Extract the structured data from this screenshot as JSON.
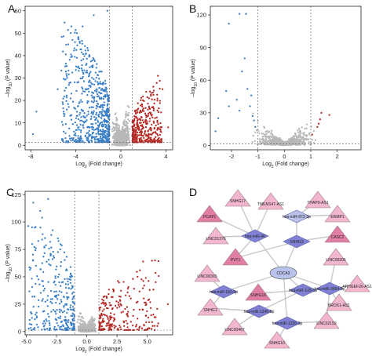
{
  "panels": [
    {
      "letter": "A",
      "xticks": [
        -8,
        -4,
        0,
        4
      ],
      "yticks": [
        0,
        10,
        20,
        30,
        40,
        50,
        60
      ],
      "xlim": [
        -8.5,
        4.6
      ],
      "ylim": [
        -2,
        62
      ]
    },
    {
      "letter": "B",
      "xticks": [
        -2,
        -1,
        0,
        1,
        2
      ],
      "yticks": [
        0,
        30,
        60,
        90,
        120
      ],
      "xlim": [
        -2.8,
        2.9
      ],
      "ylim": [
        -4,
        128
      ]
    },
    {
      "letter": "C",
      "xticks": [
        -5.0,
        -2.5,
        0.0,
        2.5,
        5.0
      ],
      "xtick_labels": [
        "-5.0",
        "-2.5",
        "0.0",
        "2.5",
        "5.0"
      ],
      "yticks": [
        0,
        25,
        50,
        75,
        100,
        125
      ],
      "xlim": [
        -5.1,
        7.1
      ],
      "ylim": [
        -3,
        128
      ]
    }
  ],
  "xlabel_pre": "Log",
  "xlabel_sub": "2",
  "xlabel_post": " (Fold change)",
  "ylabel_pre": "–log",
  "ylabel_sub": "10",
  "ylabel_post": " (P value)",
  "panel_d_letter": "D",
  "colors": {
    "down": "#3a7fc6",
    "up": "#b52a25",
    "ns": "#b8b8b8",
    "hub": "#b8c2ea",
    "mirna": "#7f82d4",
    "lnc": "#f2b6cf",
    "mrna": "#e07ea4",
    "edge": "#c8c8c8"
  },
  "network": {
    "nodes": [
      {
        "id": "SNHG17",
        "label": "SNHG17",
        "shape": "triangle",
        "color": "lnc"
      },
      {
        "id": "TMEM147AS1",
        "label": "TMEM147-AS1",
        "shape": "triangle",
        "color": "lnc"
      },
      {
        "id": "THAP9AS1",
        "label": "THAP9-AS1",
        "shape": "triangle",
        "color": "lnc"
      },
      {
        "id": "PCAT6",
        "label": "PCAT6",
        "shape": "triangle",
        "color": "mrna"
      },
      {
        "id": "MIR872",
        "label": "hsa-miR-872-3p",
        "shape": "diamond",
        "color": "hub"
      },
      {
        "id": "ERMP1",
        "label": "ERMP1",
        "shape": "triangle",
        "color": "lnc"
      },
      {
        "id": "LINC01376",
        "label": "LINC01376",
        "shape": "triangle",
        "color": "lnc"
      },
      {
        "id": "MIR96",
        "label": "hsa-miR-96",
        "shape": "diamond",
        "color": "mirna"
      },
      {
        "id": "SNHG3",
        "label": "SNHG3",
        "shape": "diamond",
        "color": "mirna"
      },
      {
        "id": "CASC2",
        "label": "CASC2",
        "shape": "triangle",
        "color": "mrna"
      },
      {
        "id": "PVT1",
        "label": "PVT1",
        "shape": "triangle",
        "color": "mrna"
      },
      {
        "id": "LINC00205",
        "label": "LINC00205",
        "shape": "triangle",
        "color": "lnc"
      },
      {
        "id": "CDCA3",
        "label": "CDCA3",
        "shape": "ellipse",
        "color": "hub"
      },
      {
        "id": "LINC00365",
        "label": "LINC00365",
        "shape": "triangle",
        "color": "lnc"
      },
      {
        "id": "ARHGEF26AS1",
        "label": "ARHGEF26-AS1",
        "shape": "triangle",
        "color": "lnc"
      },
      {
        "id": "MIR3064",
        "label": "hsa-miR-3064-5p",
        "shape": "diamond",
        "color": "mirna"
      },
      {
        "id": "MIR182",
        "label": "hsa-miR-182-5p",
        "shape": "diamond",
        "color": "mirna"
      },
      {
        "id": "MIR125",
        "label": "hsa-miR-125-5p",
        "shape": "diamond",
        "color": "mirna"
      },
      {
        "id": "SNHG16",
        "label": "SNHG16",
        "shape": "triangle",
        "color": "mrna"
      },
      {
        "id": "SNHG1",
        "label": "SNHG1",
        "shape": "triangle",
        "color": "lnc"
      },
      {
        "id": "BROX1AS1",
        "label": "BROX1-AS1",
        "shape": "triangle",
        "color": "lnc"
      },
      {
        "id": "MIR1248",
        "label": "hsa-miR-1248-5p",
        "shape": "diamond",
        "color": "mirna"
      },
      {
        "id": "MIR1226",
        "label": "hsa-miR-1226-3p",
        "shape": "diamond",
        "color": "mirna"
      },
      {
        "id": "LINC02159",
        "label": "LINC02159",
        "shape": "triangle",
        "color": "lnc"
      },
      {
        "id": "LINC00467",
        "label": "LINC00467",
        "shape": "triangle",
        "color": "lnc"
      },
      {
        "id": "SNHG10",
        "label": "SNHG10",
        "shape": "triangle",
        "color": "lnc"
      }
    ],
    "edges": [
      [
        "SNHG17",
        "MIR96"
      ],
      [
        "TMEM147AS1",
        "MIR96"
      ],
      [
        "THAP9AS1",
        "MIR872"
      ],
      [
        "PCAT6",
        "MIR96"
      ],
      [
        "ERMP1",
        "MIR872"
      ],
      [
        "LINC01376",
        "MIR96"
      ],
      [
        "MIR96",
        "CDCA3"
      ],
      [
        "MIR872",
        "SNHG3"
      ],
      [
        "SNHG3",
        "CDCA3"
      ],
      [
        "CASC2",
        "SNHG3"
      ],
      [
        "PVT1",
        "MIR96"
      ],
      [
        "LINC00205",
        "MIR3064"
      ],
      [
        "CDCA3",
        "MIR3064"
      ],
      [
        "CDCA3",
        "MIR182"
      ],
      [
        "CDCA3",
        "MIR125"
      ],
      [
        "CDCA3",
        "MIR1226"
      ],
      [
        "LINC00365",
        "MIR182"
      ],
      [
        "ARHGEF26AS1",
        "MIR3064"
      ],
      [
        "SNHG16",
        "MIR125"
      ],
      [
        "SNHG1",
        "MIR182"
      ],
      [
        "BROX1AS1",
        "MIR3064"
      ],
      [
        "SNHG1",
        "MIR1248"
      ],
      [
        "MIR1248",
        "MIR125"
      ],
      [
        "LINC02159",
        "MIR1226"
      ],
      [
        "LINC00467",
        "MIR1248"
      ],
      [
        "SNHG10",
        "MIR1226"
      ],
      [
        "LINC02159",
        "MIR3064"
      ],
      [
        "PVT1",
        "SNHG3"
      ]
    ]
  },
  "chart_data": [
    {
      "type": "scatter",
      "title": "",
      "xlabel": "Log2 (Fold change)",
      "ylabel": "–log10 (P value)",
      "xlim": [
        -8.5,
        4.6
      ],
      "ylim": [
        -2,
        62
      ],
      "thresholds": {
        "fold_change_lines": [
          -1,
          1
        ],
        "p_value_line": 1.3
      },
      "groups": {
        "down": {
          "count": 640,
          "x_range": [
            -5.2,
            -1.0
          ],
          "y_max": 58
        },
        "up": {
          "count": 360,
          "x_range": [
            1.0,
            3.6
          ],
          "y_max": 30
        },
        "ns": {
          "count": 900,
          "x_range": [
            -1.0,
            1.0
          ],
          "y_max": 35
        }
      },
      "outliers": [
        [
          -7.8,
          5
        ],
        [
          -7.5,
          15
        ],
        [
          -5.6,
          25
        ],
        [
          -4.3,
          47
        ],
        [
          -3.9,
          50
        ],
        [
          -3.4,
          53
        ],
        [
          -2.4,
          58
        ],
        [
          -1.2,
          60
        ],
        [
          3.3,
          31
        ],
        [
          3.7,
          25
        ],
        [
          4.2,
          8
        ],
        [
          2.8,
          17
        ]
      ]
    },
    {
      "type": "scatter",
      "title": "",
      "xlabel": "Log2 (Fold change)",
      "ylabel": "–log10 (P value)",
      "xlim": [
        -2.8,
        2.9
      ],
      "ylim": [
        -4,
        128
      ],
      "thresholds": {
        "fold_change_lines": [
          -1,
          1
        ],
        "p_value_line": 1.3
      },
      "points": {
        "down": [
          [
            -2.5,
            25
          ],
          [
            -2.6,
            13
          ],
          [
            -2.1,
            36
          ],
          [
            -1.7,
            32
          ],
          [
            -1.4,
            52
          ],
          [
            -1.3,
            36
          ],
          [
            -1.2,
            27
          ],
          [
            -1.8,
            42
          ],
          [
            -1.1,
            17
          ],
          [
            -1.15,
            23
          ],
          [
            -1.25,
            46
          ],
          [
            -2.2,
            50
          ]
        ],
        "up": [
          [
            1.25,
            17
          ],
          [
            1.35,
            24
          ],
          [
            1.4,
            30
          ],
          [
            1.7,
            28
          ],
          [
            1.05,
            10
          ],
          [
            1.3,
            20
          ]
        ],
        "ns_extreme": [
          [
            -2.1,
            112
          ],
          [
            -1.7,
            121
          ],
          [
            -1.45,
            121
          ],
          [
            -1.5,
            80
          ],
          [
            -1.6,
            68
          ]
        ]
      }
    },
    {
      "type": "scatter",
      "title": "",
      "xlabel": "Log2 (Fold change)",
      "ylabel": "–log10 (P value)",
      "xlim": [
        -5.1,
        7.1
      ],
      "ylim": [
        -3,
        128
      ],
      "thresholds": {
        "fold_change_lines": [
          -1,
          1
        ],
        "p_value_line": 1.3
      },
      "groups": {
        "down": {
          "count": 300,
          "x_range": [
            -4.8,
            -1.0
          ],
          "y_max": 122
        },
        "up": {
          "count": 240,
          "x_range": [
            1.0,
            5.9
          ],
          "y_max": 70
        },
        "ns": {
          "count": 700,
          "x_range": [
            -1.0,
            1.0
          ],
          "y_max": 40
        }
      },
      "outliers": [
        [
          -3.2,
          121
        ],
        [
          -4.3,
          95
        ],
        [
          -3.7,
          84
        ],
        [
          -3.0,
          71
        ],
        [
          -2.2,
          75
        ],
        [
          5.7,
          45
        ],
        [
          6.7,
          25
        ],
        [
          4.2,
          50
        ],
        [
          5.2,
          38
        ]
      ]
    }
  ]
}
